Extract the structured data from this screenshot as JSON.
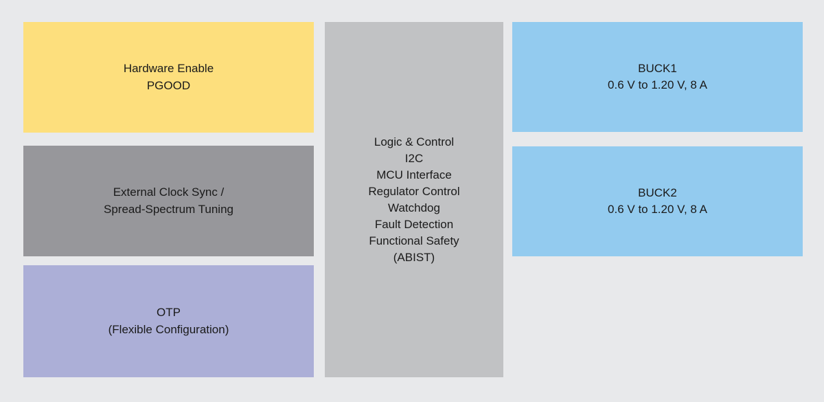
{
  "diagram": {
    "type": "functional-block-diagram",
    "background_color": "#e8e9eb",
    "text_color": "#1a1a1a",
    "blocks": {
      "hardware_enable": {
        "color": "#fddf7d",
        "lines": [
          "Hardware Enable",
          "PGOOD"
        ]
      },
      "external_clock": {
        "color": "#97979b",
        "lines": [
          "External Clock Sync /",
          "Spread-Spectrum Tuning"
        ]
      },
      "otp": {
        "color": "#acafd7",
        "lines": [
          "OTP",
          "(Flexible Configuration)"
        ]
      },
      "logic_control": {
        "color": "#c1c2c4",
        "lines": [
          "Logic & Control",
          "I2C",
          "MCU Interface",
          "Regulator Control",
          "Watchdog",
          "Fault Detection",
          "Functional Safety",
          "(ABIST)"
        ]
      },
      "buck1": {
        "color": "#93cbef",
        "lines": [
          "BUCK1",
          "0.6 V to 1.20 V, 8 A"
        ]
      },
      "buck2": {
        "color": "#93cbef",
        "lines": [
          "BUCK2",
          "0.6 V to 1.20 V, 8 A"
        ]
      }
    }
  }
}
